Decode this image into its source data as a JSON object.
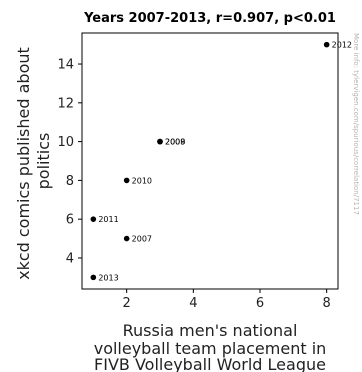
{
  "chart_data": {
    "type": "scatter",
    "title": "Years 2007-2013, r=0.907, p<0.01",
    "xlabel": [
      "Russia men's national",
      "volleyball team placement in",
      "FIVB Volleyball World League"
    ],
    "ylabel": [
      "xkcd comics published about",
      "politics"
    ],
    "xlim": [
      0.66,
      8.34
    ],
    "ylim": [
      2.4,
      15.6
    ],
    "xticks": [
      2,
      4,
      6,
      8
    ],
    "yticks": [
      4,
      6,
      8,
      10,
      12,
      14
    ],
    "grid": false,
    "points": [
      {
        "x": 2,
        "y": 5,
        "label": "2007"
      },
      {
        "x": 3,
        "y": 10,
        "label": "2008"
      },
      {
        "x": 3,
        "y": 10,
        "label": "2009"
      },
      {
        "x": 2,
        "y": 8,
        "label": "2010"
      },
      {
        "x": 1,
        "y": 6,
        "label": "2011"
      },
      {
        "x": 8,
        "y": 15,
        "label": "2012"
      },
      {
        "x": 1,
        "y": 3,
        "label": "2013"
      }
    ],
    "marker_color": "#000000"
  },
  "watermark": "More info: tylervigen.com/spurious/correlation/7117"
}
